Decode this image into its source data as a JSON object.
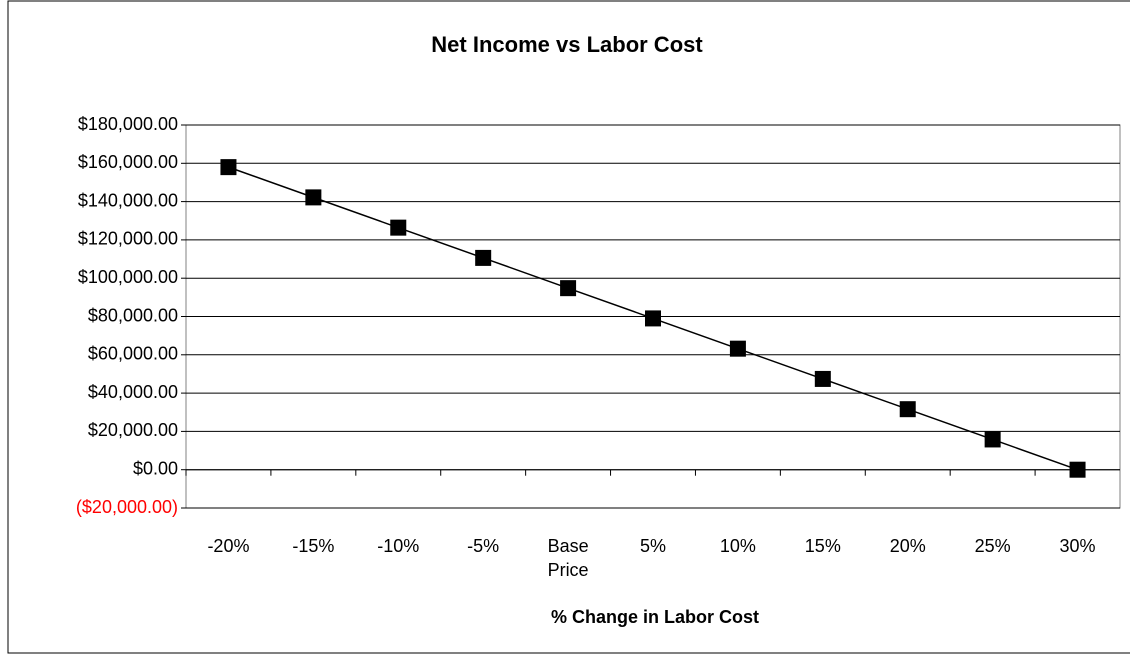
{
  "chart_data": {
    "type": "line",
    "title": "Net Income vs Labor Cost",
    "x_label": "% Change in Labor Cost",
    "categories": [
      "-20%",
      "-15%",
      "-10%",
      "-5%",
      "Base Price",
      "5%",
      "10%",
      "15%",
      "20%",
      "25%",
      "30%"
    ],
    "series": [
      {
        "name": "Net Income",
        "color": "#000000",
        "values": [
          158000,
          142200,
          126400,
          110600,
          94800,
          79000,
          63200,
          47400,
          31600,
          15800,
          0
        ]
      }
    ],
    "ylim": [
      -20000,
      180000
    ],
    "yticks": [
      {
        "value": -20000,
        "label": "($20,000.00)"
      },
      {
        "value": 0,
        "label": "$0.00"
      },
      {
        "value": 20000,
        "label": "$20,000.00"
      },
      {
        "value": 40000,
        "label": "$40,000.00"
      },
      {
        "value": 60000,
        "label": "$60,000.00"
      },
      {
        "value": 80000,
        "label": "$80,000.00"
      },
      {
        "value": 100000,
        "label": "$100,000.00"
      },
      {
        "value": 120000,
        "label": "$120,000.00"
      },
      {
        "value": 140000,
        "label": "$140,000.00"
      },
      {
        "value": 160000,
        "label": "$160,000.00"
      },
      {
        "value": 180000,
        "label": "$180,000.00"
      }
    ],
    "negative_tick_color": "#ff0000",
    "grid": true
  }
}
